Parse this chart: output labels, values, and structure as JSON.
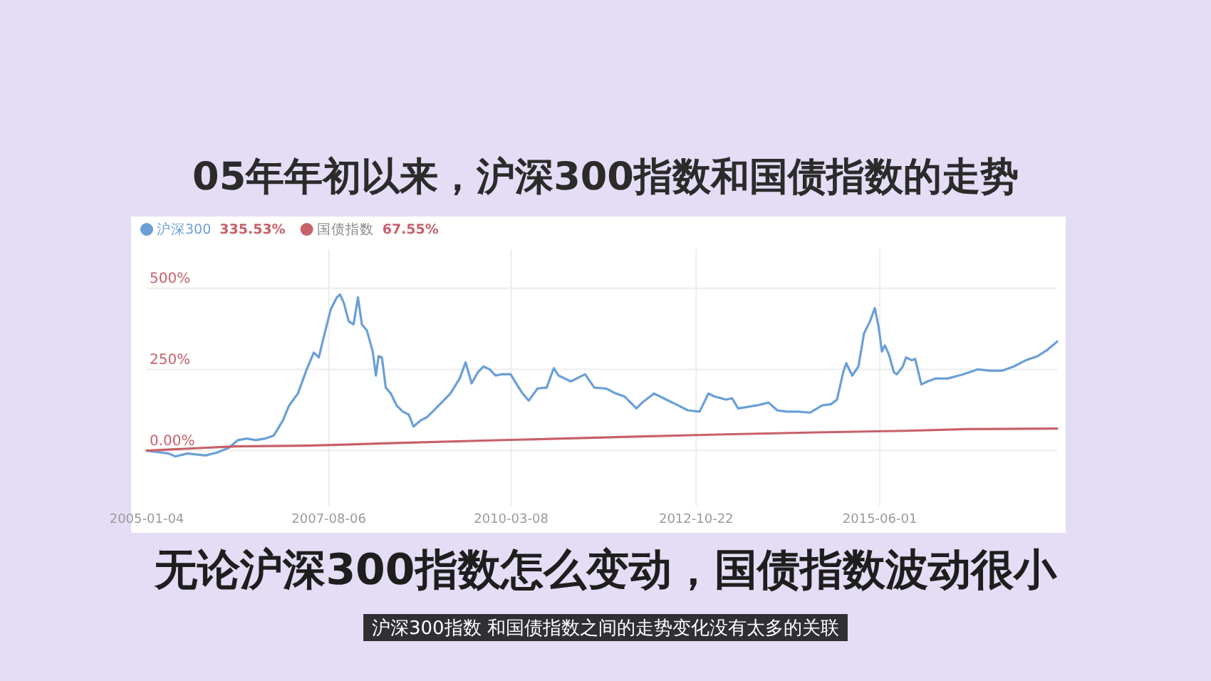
{
  "chart_data": {
    "type": "line",
    "title": "05年年初以来，沪深300指数和国债指数的走势",
    "subtitle": "无论沪深300指数怎么变动，国债指数波动很小",
    "annotations": [
      "335.53%",
      "67.55%",
      "沪深300指数  和国债指数之间的走势变化没有太多的关联"
    ],
    "xlim": [
      "2005-01-04",
      "2017-12-06"
    ],
    "xticks": [
      "2005-01-04",
      "2007-08-06",
      "2010-03-08",
      "2012-10-22",
      "2015-06-01"
    ],
    "ylim": [
      -170,
      620
    ],
    "yticks": [
      {
        "value": 0,
        "label": "0.00%"
      },
      {
        "value": 250,
        "label": "250%"
      },
      {
        "value": 500,
        "label": "500%"
      }
    ],
    "grid": true,
    "legend": "top left",
    "marker": "none",
    "line_style": "solid",
    "series": [
      {
        "name": "沪深300",
        "color": "#6b9fd6",
        "x": [
          "2005-01-04",
          "2005-04-28",
          "2005-06-01",
          "2005-08-02",
          "2005-11-04",
          "2006-01-05",
          "2006-03-06",
          "2006-04-21",
          "2006-06-08",
          "2006-07-23",
          "2006-09-09",
          "2006-10-24",
          "2006-12-11",
          "2007-01-12",
          "2007-02-27",
          "2007-04-13",
          "2007-05-20",
          "2007-06-15",
          "2007-07-15",
          "2007-08-16",
          "2007-09-16",
          "2007-10-03",
          "2007-10-23",
          "2007-11-17",
          "2007-12-12",
          "2008-01-04",
          "2008-01-24",
          "2008-02-19",
          "2008-03-20",
          "2008-04-06",
          "2008-04-20",
          "2008-05-07",
          "2008-05-27",
          "2008-06-22",
          "2008-07-22",
          "2008-08-23",
          "2008-09-23",
          "2008-10-18",
          "2008-11-24",
          "2008-12-25",
          "2009-01-25",
          "2009-02-26",
          "2009-04-27",
          "2009-06-14",
          "2009-07-15",
          "2009-08-15",
          "2009-09-16",
          "2009-10-16",
          "2009-11-17",
          "2009-12-17",
          "2010-01-18",
          "2010-03-05",
          "2010-04-06",
          "2010-05-06",
          "2010-06-07",
          "2010-07-22",
          "2010-09-08",
          "2010-10-15",
          "2010-11-09",
          "2011-01-11",
          "2011-03-26",
          "2011-05-13",
          "2011-07-14",
          "2011-09-01",
          "2011-10-16",
          "2011-12-17",
          "2012-01-17",
          "2012-03-18",
          "2012-05-20",
          "2012-07-21",
          "2012-09-08",
          "2012-11-09",
          "2012-12-24",
          "2013-01-24",
          "2013-03-25",
          "2013-04-26",
          "2013-05-27",
          "2013-09-01",
          "2013-11-01",
          "2013-12-16",
          "2014-02-03",
          "2014-04-04",
          "2014-06-05",
          "2014-08-06",
          "2014-09-21",
          "2014-10-22",
          "2014-11-23",
          "2014-12-09",
          "2015-01-09",
          "2015-02-10",
          "2015-03-11",
          "2015-04-11",
          "2015-05-06",
          "2015-05-26",
          "2015-06-12",
          "2015-06-27",
          "2015-07-18",
          "2015-08-13",
          "2015-08-28",
          "2015-09-28",
          "2015-10-15",
          "2015-11-15",
          "2015-12-01",
          "2016-01-02",
          "2016-02-03",
          "2016-03-17",
          "2016-05-18",
          "2016-08-06",
          "2016-10-21",
          "2016-12-22",
          "2017-02-23",
          "2017-04-25",
          "2017-06-26",
          "2017-08-27",
          "2017-10-14",
          "2017-12-06"
        ],
        "values": [
          0,
          -9,
          -18,
          -9,
          -15,
          -6,
          9,
          32,
          37,
          32,
          37,
          46,
          93,
          139,
          176,
          250,
          302,
          287,
          361,
          435,
          472,
          481,
          454,
          398,
          389,
          472,
          389,
          370,
          306,
          231,
          291,
          287,
          194,
          176,
          139,
          120,
          111,
          74,
          93,
          102,
          120,
          139,
          176,
          222,
          272,
          207,
          241,
          259,
          250,
          231,
          235,
          235,
          204,
          176,
          154,
          191,
          194,
          254,
          231,
          213,
          235,
          194,
          191,
          176,
          167,
          130,
          148,
          176,
          157,
          139,
          124,
          120,
          176,
          167,
          157,
          161,
          130,
          139,
          148,
          124,
          120,
          120,
          117,
          139,
          143,
          157,
          241,
          269,
          231,
          259,
          361,
          398,
          439,
          380,
          305,
          324,
          296,
          241,
          235,
          259,
          287,
          278,
          283,
          204,
          213,
          222,
          222,
          235,
          250,
          246,
          246,
          259,
          278,
          291,
          309,
          336
        ]
      },
      {
        "name": "国债指数",
        "color": "#c8606a",
        "x": [
          "2005-01-04",
          "2006-04-07",
          "2007-04-13",
          "2008-08-23",
          "2010-03-05",
          "2011-12-17",
          "2013-03-25",
          "2014-07-06",
          "2015-10-15",
          "2016-08-27",
          "2017-12-06"
        ],
        "values": [
          0,
          13,
          15,
          24,
          33,
          43,
          50,
          56,
          61,
          66,
          68
        ]
      }
    ]
  }
}
